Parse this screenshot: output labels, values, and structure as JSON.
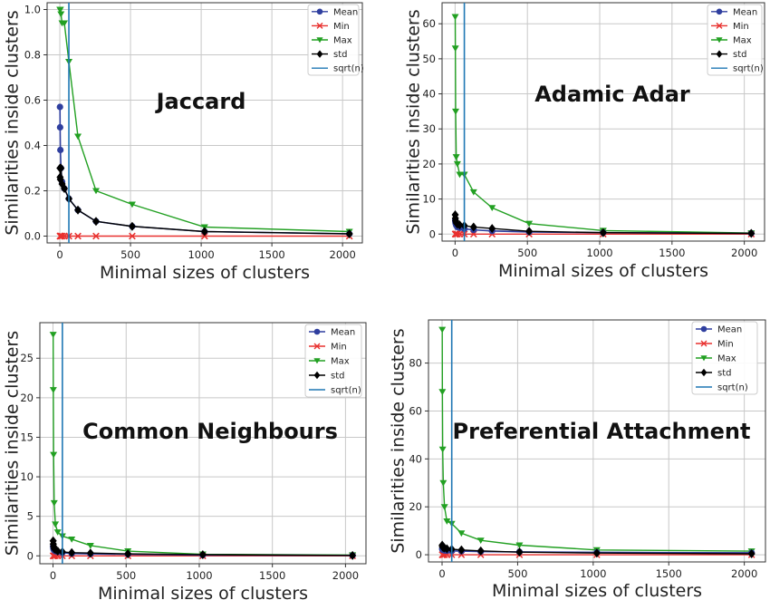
{
  "figure": {
    "colors": {
      "mean": "#2f3f9f",
      "min": "#e8312f",
      "max": "#22a022",
      "std": "#000000",
      "sqrt": "#1f77b4",
      "grid": "#c8c8c8"
    }
  },
  "chart_data": [
    {
      "type": "line",
      "title": "Jaccard",
      "xlabel": "Minimal sizes of clusters",
      "ylabel": "Similarities inside clusters",
      "xlim": [
        -90,
        2140
      ],
      "ylim": [
        -0.03,
        1.03
      ],
      "xticks": [
        0,
        500,
        1000,
        1500,
        2000
      ],
      "yticks": [
        0.0,
        0.2,
        0.4,
        0.6,
        0.8,
        1.0
      ],
      "ytick_labels": [
        "0.0",
        "0.2",
        "0.4",
        "0.6",
        "0.8",
        "1.0"
      ],
      "vline": 64,
      "grid": true,
      "legend": {
        "position": "top-right",
        "entries": [
          "Mean",
          "Min",
          "Max",
          "std",
          "sqrt(n)"
        ]
      },
      "x": [
        1,
        2,
        4,
        8,
        16,
        32,
        64,
        128,
        256,
        512,
        1024,
        2048
      ],
      "series": [
        {
          "name": "Mean",
          "values": [
            0.57,
            0.48,
            0.38,
            0.3,
            0.24,
            0.21,
            0.165,
            0.115,
            0.065,
            0.043,
            0.02,
            0.01
          ]
        },
        {
          "name": "Min",
          "values": [
            0.0,
            0.0,
            0.0,
            0.0,
            0.0,
            0.0,
            0.0,
            0.0,
            0.0,
            0.0,
            0.0,
            0.0
          ]
        },
        {
          "name": "Max",
          "values": [
            1.0,
            1.0,
            1.0,
            0.98,
            0.94,
            0.94,
            0.77,
            0.44,
            0.2,
            0.14,
            0.04,
            0.02
          ]
        },
        {
          "name": "std",
          "values": [
            0.3,
            0.26,
            0.25,
            0.3,
            0.23,
            0.21,
            0.165,
            0.115,
            0.065,
            0.043,
            0.02,
            0.01
          ]
        }
      ]
    },
    {
      "type": "line",
      "title": "Adamic Adar",
      "xlabel": "Minimal sizes of clusters",
      "ylabel": "Similarities inside clusters",
      "xlim": [
        -90,
        2140
      ],
      "ylim": [
        -2,
        66
      ],
      "xticks": [
        0,
        500,
        1000,
        1500,
        2000
      ],
      "yticks": [
        0,
        10,
        20,
        30,
        40,
        50,
        60
      ],
      "ytick_labels": [
        "0",
        "10",
        "20",
        "30",
        "40",
        "50",
        "60"
      ],
      "vline": 64,
      "grid": true,
      "legend": {
        "position": "top-right",
        "entries": [
          "Mean",
          "Min",
          "Max",
          "std",
          "sqrt(n)"
        ]
      },
      "x": [
        1,
        2,
        4,
        8,
        16,
        32,
        64,
        128,
        256,
        512,
        1024,
        2048
      ],
      "series": [
        {
          "name": "Mean",
          "values": [
            4.0,
            3.5,
            3.0,
            2.5,
            2.0,
            1.8,
            1.5,
            1.2,
            0.9,
            0.6,
            0.4,
            0.2
          ]
        },
        {
          "name": "Min",
          "values": [
            0,
            0,
            0,
            0,
            0,
            0,
            0,
            0,
            0,
            0,
            0,
            0
          ]
        },
        {
          "name": "Max",
          "values": [
            62,
            53,
            35,
            22,
            20,
            17,
            17,
            12,
            7.5,
            3,
            1,
            0.3
          ]
        },
        {
          "name": "std",
          "values": [
            5.5,
            4.5,
            3.8,
            3.2,
            2.8,
            2.6,
            2.4,
            2.0,
            1.6,
            0.8,
            0.4,
            0.2
          ]
        }
      ]
    },
    {
      "type": "line",
      "title": "Common Neighbours",
      "xlabel": "Minimal sizes of clusters",
      "ylabel": "Similarities inside clusters",
      "xlim": [
        -90,
        2140
      ],
      "ylim": [
        -1,
        29.5
      ],
      "xticks": [
        0,
        500,
        1000,
        1500,
        2000
      ],
      "yticks": [
        0,
        5,
        10,
        15,
        20,
        25
      ],
      "ytick_labels": [
        "0",
        "5",
        "10",
        "15",
        "20",
        "25"
      ],
      "vline": 64,
      "grid": true,
      "legend": {
        "position": "top-right",
        "entries": [
          "Mean",
          "Min",
          "Max",
          "std",
          "sqrt(n)"
        ]
      },
      "x": [
        1,
        2,
        4,
        8,
        16,
        32,
        64,
        128,
        256,
        512,
        1024,
        2048
      ],
      "series": [
        {
          "name": "Mean",
          "values": [
            1.2,
            1.0,
            0.8,
            0.7,
            0.6,
            0.5,
            0.4,
            0.3,
            0.25,
            0.2,
            0.1,
            0.05
          ]
        },
        {
          "name": "Min",
          "values": [
            0,
            0,
            0,
            0,
            0,
            0,
            0,
            0,
            0,
            0,
            0,
            0
          ]
        },
        {
          "name": "Max",
          "values": [
            28,
            21,
            12.8,
            6.7,
            4.0,
            3.0,
            2.5,
            2.1,
            1.3,
            0.6,
            0.2,
            0.1
          ]
        },
        {
          "name": "std",
          "values": [
            1.9,
            1.5,
            1.2,
            0.9,
            0.8,
            0.6,
            0.5,
            0.4,
            0.35,
            0.25,
            0.15,
            0.05
          ]
        }
      ]
    },
    {
      "type": "line",
      "title": "Preferential Attachment",
      "xlabel": "Minimal sizes of clusters",
      "ylabel": "Similarities inside clusters",
      "xlim": [
        -90,
        2140
      ],
      "ylim": [
        -3,
        98
      ],
      "xticks": [
        0,
        500,
        1000,
        1500,
        2000
      ],
      "yticks": [
        0,
        20,
        40,
        60,
        80
      ],
      "ytick_labels": [
        "0",
        "20",
        "40",
        "60",
        "80"
      ],
      "vline": 64,
      "grid": true,
      "legend": {
        "position": "top-right",
        "entries": [
          "Mean",
          "Min",
          "Max",
          "std",
          "sqrt(n)"
        ]
      },
      "x": [
        1,
        2,
        4,
        8,
        16,
        32,
        64,
        128,
        256,
        512,
        1024,
        2048
      ],
      "series": [
        {
          "name": "Mean",
          "values": [
            2.5,
            2.3,
            2.1,
            2.0,
            1.8,
            1.7,
            1.6,
            1.5,
            1.3,
            1.2,
            1.0,
            0.8
          ]
        },
        {
          "name": "Min",
          "values": [
            0,
            0,
            0,
            0,
            0,
            0,
            0,
            0,
            0,
            0,
            0,
            0
          ]
        },
        {
          "name": "Max",
          "values": [
            94,
            68,
            44,
            30,
            20,
            14,
            13,
            9,
            6,
            4,
            2,
            1.5
          ]
        },
        {
          "name": "std",
          "values": [
            4.0,
            3.5,
            3.2,
            3.0,
            2.8,
            2.5,
            2.3,
            2.0,
            1.6,
            1.1,
            0.7,
            0.4
          ]
        }
      ]
    }
  ]
}
